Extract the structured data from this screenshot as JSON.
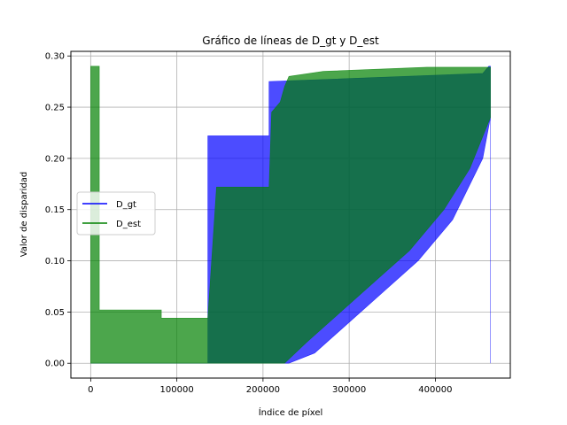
{
  "chart_data": {
    "type": "area",
    "title": "Gráfico de líneas de D_gt y D_est",
    "xlabel": "Índice de píxel",
    "ylabel": "Valor de disparidad",
    "xlim": [
      -23000,
      487000
    ],
    "ylim": [
      -0.0145,
      0.3045
    ],
    "xticks": [
      0,
      100000,
      200000,
      300000,
      400000
    ],
    "xtick_labels": [
      "0",
      "100000",
      "200000",
      "300000",
      "400000"
    ],
    "yticks": [
      0.0,
      0.05,
      0.1,
      0.15,
      0.2,
      0.25,
      0.3
    ],
    "ytick_labels": [
      "0.00",
      "0.05",
      "0.10",
      "0.15",
      "0.20",
      "0.25",
      "0.30"
    ],
    "grid": true,
    "legend_position": "center-left",
    "series": [
      {
        "name": "D_gt",
        "color": "#0000ff",
        "alpha": 0.7,
        "upper": [
          [
            0,
            0
          ],
          [
            136000,
            0
          ],
          [
            136000,
            0.222
          ],
          [
            207000,
            0.222
          ],
          [
            207000,
            0.275
          ],
          [
            455000,
            0.283
          ],
          [
            462000,
            0.29
          ],
          [
            464000,
            0.29
          ],
          [
            464000,
            0
          ]
        ],
        "lower": [
          [
            0,
            0
          ],
          [
            136000,
            0
          ],
          [
            207000,
            0
          ],
          [
            230000,
            0
          ],
          [
            260000,
            0.01
          ],
          [
            300000,
            0.04
          ],
          [
            340000,
            0.07
          ],
          [
            380000,
            0.1
          ],
          [
            420000,
            0.14
          ],
          [
            455000,
            0.2
          ],
          [
            464000,
            0.24
          ],
          [
            464000,
            0
          ]
        ]
      },
      {
        "name": "D_est",
        "color": "#008000",
        "alpha": 0.7,
        "upper": [
          [
            0,
            0.03
          ],
          [
            0,
            0.29
          ],
          [
            10000,
            0.29
          ],
          [
            10000,
            0.052
          ],
          [
            82000,
            0.052
          ],
          [
            82000,
            0.044
          ],
          [
            136000,
            0.044
          ],
          [
            146000,
            0.172
          ],
          [
            207000,
            0.172
          ],
          [
            210000,
            0.245
          ],
          [
            220000,
            0.255
          ],
          [
            225000,
            0.27
          ],
          [
            230000,
            0.28
          ],
          [
            270000,
            0.285
          ],
          [
            390000,
            0.289
          ],
          [
            464000,
            0.289
          ],
          [
            464000,
            0.24
          ]
        ],
        "lower": [
          [
            0,
            0
          ],
          [
            136000,
            0
          ],
          [
            200000,
            0
          ],
          [
            225000,
            0
          ],
          [
            250000,
            0.02
          ],
          [
            290000,
            0.05
          ],
          [
            330000,
            0.08
          ],
          [
            370000,
            0.11
          ],
          [
            410000,
            0.15
          ],
          [
            440000,
            0.19
          ],
          [
            464000,
            0.24
          ]
        ]
      }
    ]
  }
}
